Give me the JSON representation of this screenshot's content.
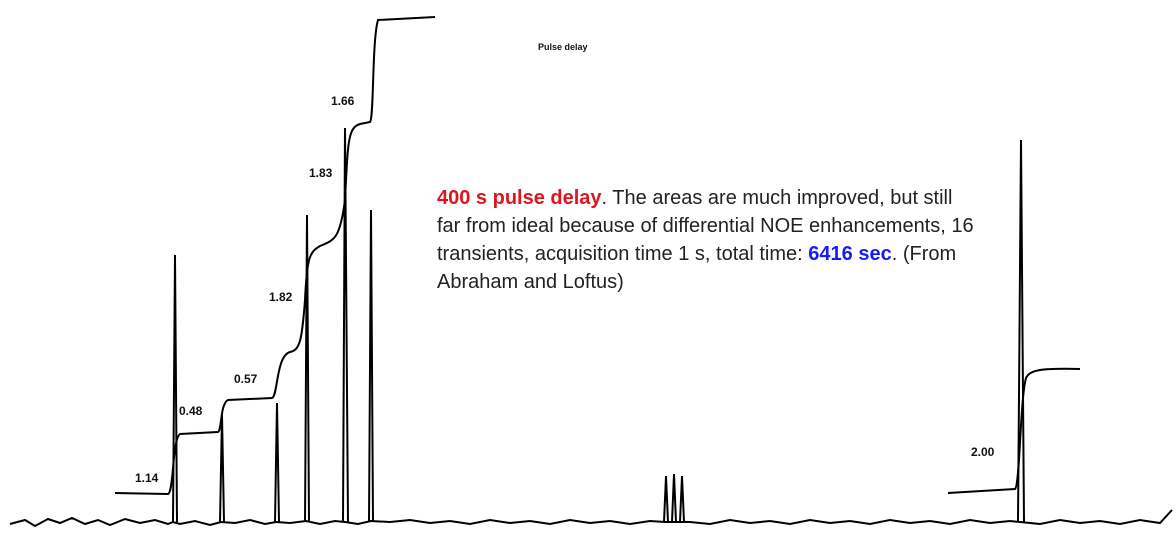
{
  "header": {
    "title": "Pulse delay"
  },
  "integrals": [
    "1.14",
    "0.48",
    "0.57",
    "1.82",
    "1.83",
    "1.66",
    "2.00"
  ],
  "caption": {
    "highlight": "400 s pulse delay",
    "body": ".  The areas are much improved, but still far from ideal because of differential NOE enhancements, 16 transients, acquisition time 1 s, total time:",
    "time": "6416 sec",
    "source": ". (From Abraham and Loftus)"
  }
}
